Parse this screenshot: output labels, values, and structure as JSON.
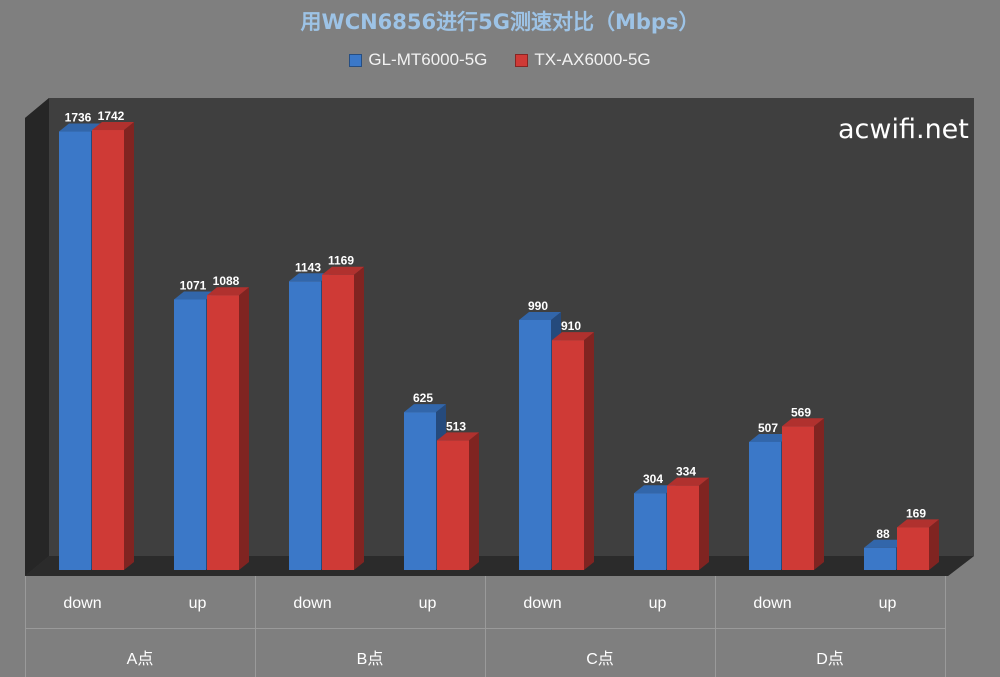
{
  "chart_data": {
    "type": "bar",
    "title": "用WCN6856进行5G测速对比（Mbps）",
    "watermark": "acwifi.net",
    "categories": [
      "down",
      "up",
      "down",
      "up",
      "down",
      "up",
      "down",
      "up"
    ],
    "groups": [
      "A点",
      "B点",
      "C点",
      "D点"
    ],
    "series": [
      {
        "name": "GL-MT6000-5G",
        "color": "#3b78c8",
        "values": [
          1736,
          1071,
          1143,
          625,
          990,
          304,
          507,
          88
        ]
      },
      {
        "name": "TX-AX6000-5G",
        "color": "#cf3a36",
        "values": [
          1742,
          1088,
          1169,
          513,
          910,
          334,
          569,
          169
        ]
      }
    ],
    "ylim": [
      0,
      1750
    ],
    "legend_position": "top-center",
    "grid": false,
    "style": "3d-clustered-column",
    "colors": {
      "background": "#7f7f7f",
      "plot_wall": "#3f3f3f",
      "title": "#9dc3e6"
    }
  }
}
